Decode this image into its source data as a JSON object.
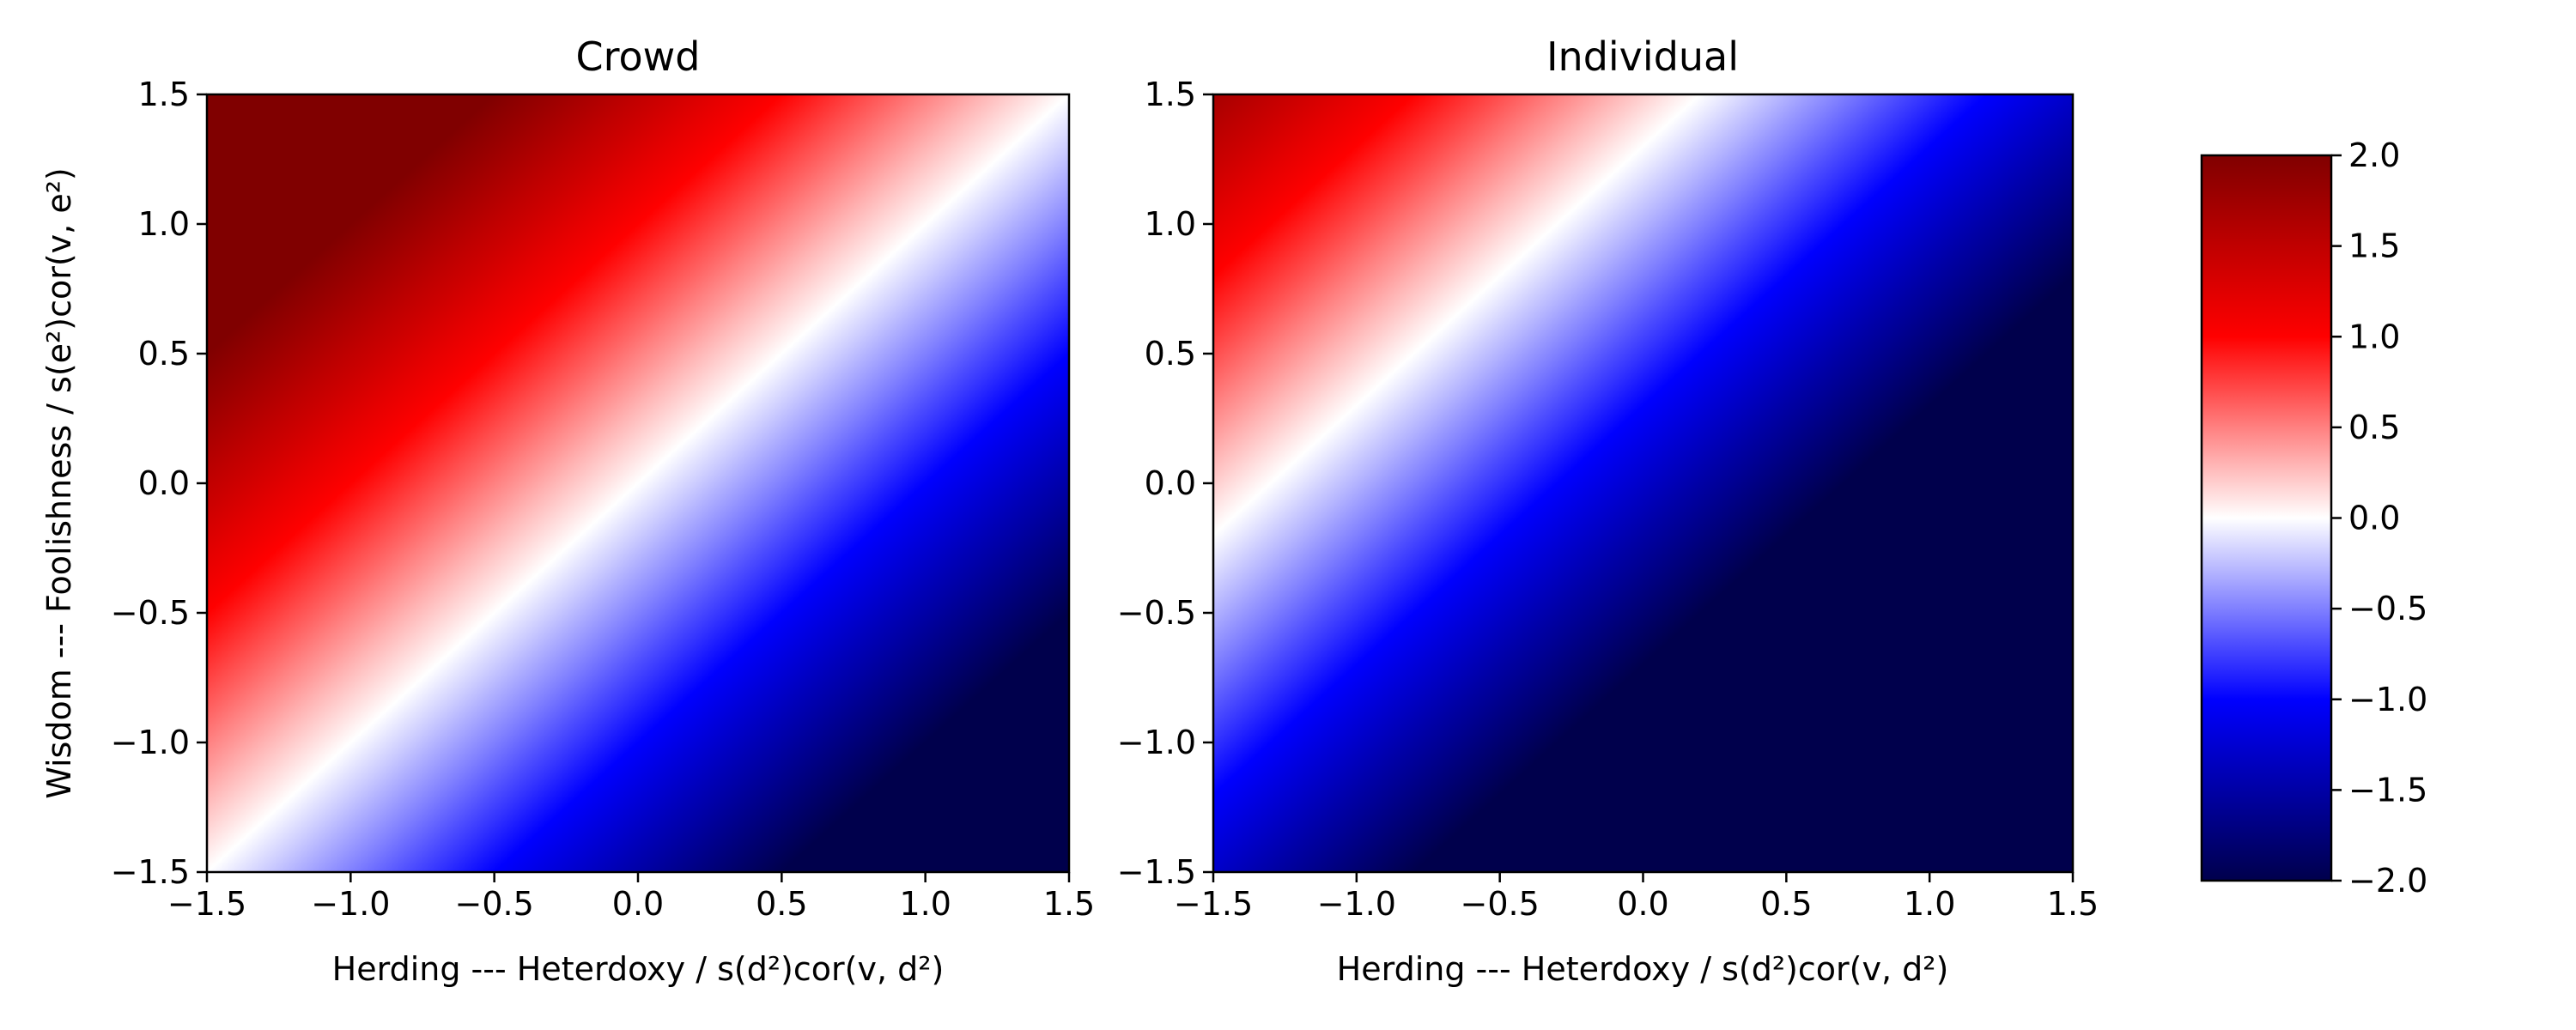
{
  "chart_data": {
    "type": "heatmap",
    "colormap": "seismic",
    "colors": {
      "stops": [
        "#00004c",
        "#0000ff",
        "#ffffff",
        "#ff0000",
        "#800000"
      ]
    },
    "panels": [
      {
        "title": "Crowd",
        "xlabel": "Herding --- Heterdoxy / s(d²)cor(v, d²)",
        "ylabel": "Wisdom --- Foolishness / s(e²)cor(v, e²)",
        "xlim": [
          -1.5,
          1.5
        ],
        "ylim": [
          -1.5,
          1.5
        ],
        "xticks": [
          -1.5,
          -1.0,
          -0.5,
          0.0,
          0.5,
          1.0,
          1.5
        ],
        "yticks": [
          -1.5,
          -1.0,
          -0.5,
          0.0,
          0.5,
          1.0,
          1.5
        ],
        "xtick_labels": [
          "−1.5",
          "−1.0",
          "−0.5",
          "0.0",
          "0.5",
          "1.0",
          "1.5"
        ],
        "ytick_labels": [
          "−1.5",
          "−1.0",
          "−0.5",
          "0.0",
          "0.5",
          "1.0",
          "1.5"
        ],
        "value_function": "y - x",
        "corner_values": {
          "top_left": 3.0,
          "top_right": 0.0,
          "bottom_left": 0.0,
          "bottom_right": -3.0
        }
      },
      {
        "title": "Individual",
        "xlabel": "Herding --- Heterdoxy / s(d²)cor(v, d²)",
        "ylabel": "",
        "xlim": [
          -1.5,
          1.5
        ],
        "ylim": [
          -1.5,
          1.5
        ],
        "xticks": [
          -1.5,
          -1.0,
          -0.5,
          0.0,
          0.5,
          1.0,
          1.5
        ],
        "yticks": [
          -1.5,
          -1.0,
          -0.5,
          0.0,
          0.5,
          1.0,
          1.5
        ],
        "xtick_labels": [
          "−1.5",
          "−1.0",
          "−0.5",
          "0.0",
          "0.5",
          "1.0",
          "1.5"
        ],
        "ytick_labels": [
          "−1.5",
          "−1.0",
          "−0.5",
          "0.0",
          "0.5",
          "1.0",
          "1.5"
        ],
        "value_function": "y - x - 1.3",
        "corner_values": {
          "top_left": 1.7,
          "top_right": -1.3,
          "bottom_left": -1.3,
          "bottom_right": -4.3
        }
      }
    ],
    "colorbar": {
      "vmin": -2.0,
      "vmax": 2.0,
      "ticks": [
        2.0,
        1.5,
        1.0,
        0.5,
        0.0,
        -0.5,
        -1.0,
        -1.5,
        -2.0
      ],
      "tick_labels": [
        "2.0",
        "1.5",
        "1.0",
        "0.5",
        "0.0",
        "−0.5",
        "−1.0",
        "−1.5",
        "−2.0"
      ]
    }
  }
}
